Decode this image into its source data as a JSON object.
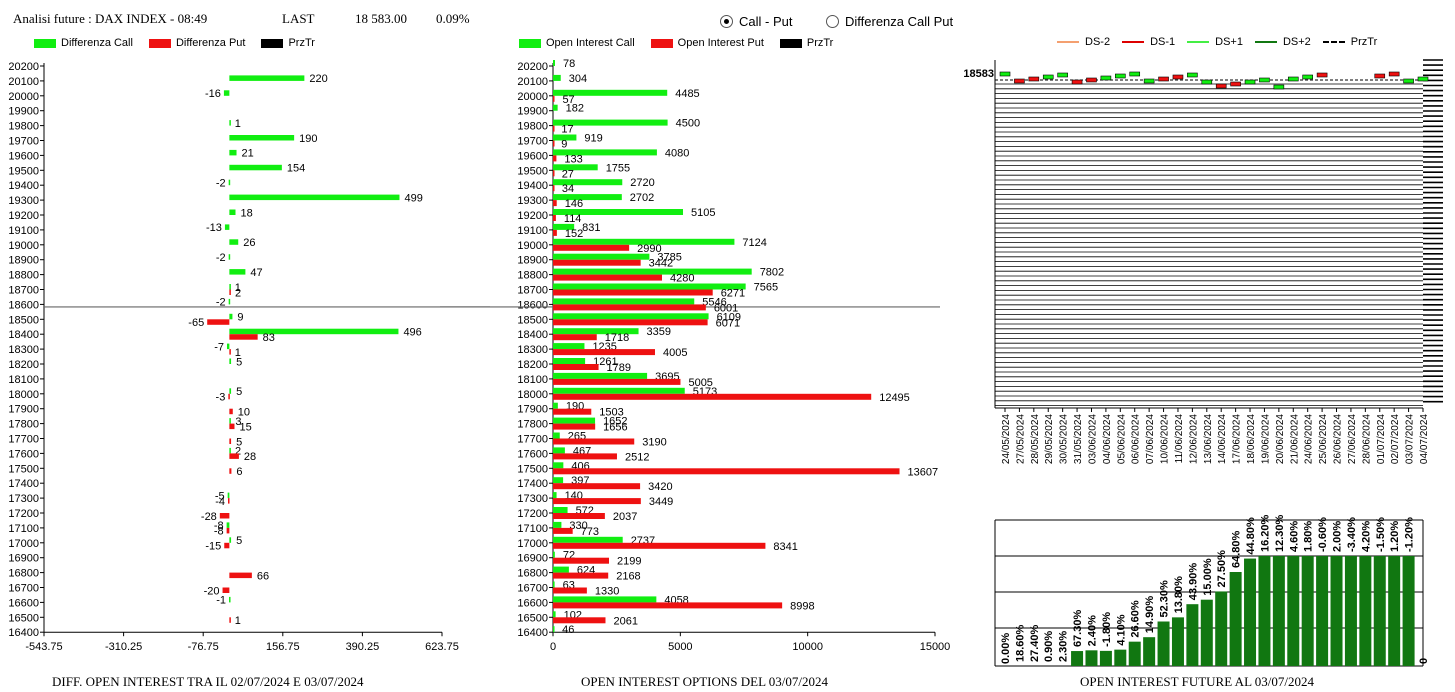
{
  "header": {
    "title": "Analisi future : DAX INDEX - 08:49",
    "last_label": "LAST",
    "last_value": "18 583.00",
    "change": "0.09%"
  },
  "mode": {
    "options": [
      "Call - Put",
      "Differenza Call Put"
    ],
    "selected": "Call - Put"
  },
  "colors": {
    "green": "#11ee11",
    "red": "#ee1111",
    "black": "#000000",
    "dark_green": "#117711"
  },
  "legend1": [
    "Differenza Call",
    "Differenza Put",
    "PrzTr"
  ],
  "legend2": [
    "Open Interest Call",
    "Open Interest Put",
    "PrzTr"
  ],
  "legend3": [
    "DS-2",
    "DS-1",
    "DS+1",
    "DS+2",
    "PrzTr"
  ],
  "footers": {
    "f1": "DIFF. OPEN INTEREST TRA IL 02/07/2024 E 03/07/2024",
    "f2": "OPEN INTEREST OPTIONS DEL 03/07/2024",
    "f3": "OPEN INTEREST FUTURE AL 03/07/2024"
  },
  "chart_data": [
    {
      "type": "bar",
      "orientation": "horizontal",
      "categories": [
        "20200",
        "20100",
        "20000",
        "19900",
        "19800",
        "19700",
        "19600",
        "19500",
        "19400",
        "19300",
        "19200",
        "19100",
        "19000",
        "18900",
        "18800",
        "18700",
        "18600",
        "18500",
        "18400",
        "18300",
        "18200",
        "18100",
        "18000",
        "17900",
        "17800",
        "17700",
        "17600",
        "17500",
        "17400",
        "17300",
        "17200",
        "17100",
        "17000",
        "16900",
        "16800",
        "16700",
        "16600",
        "16500",
        "16400"
      ],
      "series": [
        {
          "name": "Differenza Call",
          "values": [
            null,
            220,
            -16,
            null,
            1,
            190,
            21,
            154,
            -2,
            499,
            18,
            -13,
            26,
            -2,
            47,
            1,
            -2,
            9,
            496,
            -7,
            5,
            null,
            5,
            null,
            3,
            null,
            2,
            null,
            null,
            -5,
            null,
            -8,
            5,
            null,
            null,
            null,
            -1,
            null,
            null
          ]
        },
        {
          "name": "Differenza Put",
          "values": [
            null,
            null,
            null,
            null,
            null,
            null,
            null,
            null,
            null,
            null,
            null,
            null,
            null,
            null,
            null,
            2,
            null,
            -65,
            83,
            1,
            null,
            null,
            -3,
            10,
            15,
            5,
            28,
            6,
            null,
            -4,
            -28,
            -8,
            -15,
            null,
            66,
            -20,
            null,
            1,
            null
          ]
        }
      ],
      "xticks": [
        "-543.75",
        "-310.25",
        "-76.75",
        "156.75",
        "390.25",
        "623.75"
      ],
      "xlim": [
        -543.75,
        623.75
      ],
      "przTr": 18583,
      "title": "DIFF. OPEN INTEREST TRA IL 02/07/2024 E 03/07/2024"
    },
    {
      "type": "bar",
      "orientation": "horizontal",
      "categories": [
        "20200",
        "20100",
        "20000",
        "19900",
        "19800",
        "19700",
        "19600",
        "19500",
        "19400",
        "19300",
        "19200",
        "19100",
        "19000",
        "18900",
        "18800",
        "18700",
        "18600",
        "18500",
        "18400",
        "18300",
        "18200",
        "18100",
        "18000",
        "17900",
        "17800",
        "17700",
        "17600",
        "17500",
        "17400",
        "17300",
        "17200",
        "17100",
        "17000",
        "16900",
        "16800",
        "16700",
        "16600",
        "16500",
        "16400"
      ],
      "series": [
        {
          "name": "Open Interest Call",
          "values": [
            78,
            304,
            4485,
            182,
            4500,
            919,
            4080,
            1755,
            2720,
            2702,
            5105,
            831,
            7124,
            3785,
            7802,
            7565,
            5546,
            6109,
            3359,
            1235,
            1261,
            3695,
            5173,
            190,
            1652,
            265,
            467,
            406,
            397,
            140,
            572,
            330,
            2737,
            72,
            624,
            63,
            4058,
            102,
            46
          ]
        },
        {
          "name": "Open Interest Put",
          "values": [
            null,
            null,
            57,
            null,
            17,
            9,
            133,
            27,
            34,
            146,
            114,
            152,
            2990,
            3442,
            4280,
            6271,
            6001,
            6071,
            1718,
            4005,
            1789,
            5005,
            12495,
            1503,
            1656,
            3190,
            2512,
            13607,
            3420,
            3449,
            2037,
            773,
            8341,
            2199,
            2168,
            1330,
            8998,
            2061,
            null
          ]
        }
      ],
      "xticks": [
        "0",
        "5000",
        "10000",
        "15000"
      ],
      "xlim": [
        0,
        15000
      ],
      "przTr": 18583,
      "title": "OPEN INTEREST OPTIONS DEL 03/07/2024"
    },
    {
      "type": "candlestick",
      "price_label": "18583",
      "dates": [
        "24/05/2024",
        "27/05/2024",
        "28/05/2024",
        "29/05/2024",
        "30/05/2024",
        "31/05/2024",
        "03/06/2024",
        "04/06/2024",
        "05/06/2024",
        "06/06/2024",
        "07/06/2024",
        "10/06/2024",
        "11/06/2024",
        "12/06/2024",
        "13/06/2024",
        "14/06/2024",
        "17/06/2024",
        "18/06/2024",
        "19/06/2024",
        "20/06/2024",
        "21/06/2024",
        "24/06/2024",
        "25/06/2024",
        "26/06/2024",
        "27/06/2024",
        "28/06/2024",
        "01/07/2024",
        "02/07/2024",
        "03/07/2024",
        "04/07/2024"
      ]
    },
    {
      "type": "bar",
      "values": [
        0.0,
        18.6,
        27.4,
        0.9,
        2.3,
        67.3,
        2.4,
        -1.8,
        4.1,
        26.6,
        14.9,
        52.3,
        13.8,
        43.9,
        15.0,
        27.5,
        64.8,
        44.8,
        16.2,
        12.3,
        4.6,
        1.8,
        -0.6,
        2.0,
        -3.4,
        4.2,
        -1.5,
        1.2,
        -1.2,
        0
      ],
      "labels": [
        "0.00%",
        "18.60%",
        "27.40%",
        "0.90%",
        "2.30%",
        "67.30%",
        "2.40%",
        "-1.80%",
        "4.10%",
        "26.60%",
        "14.90%",
        "52.30%",
        "13.80%",
        "43.90%",
        "15.00%",
        "27.50%",
        "64.80%",
        "44.80%",
        "16.20%",
        "12.30%",
        "4.60%",
        "1.80%",
        "-0.60%",
        "2.00%",
        "-3.40%",
        "4.20%",
        "-1.50%",
        "1.20%",
        "-1.20%",
        "0"
      ],
      "title": "OPEN INTEREST FUTURE AL 03/07/2024"
    }
  ]
}
